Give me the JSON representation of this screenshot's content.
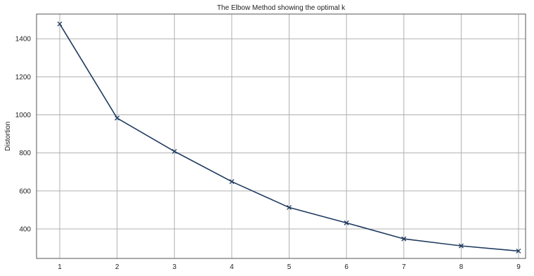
{
  "chart_data": {
    "type": "line",
    "title": "The Elbow Method showing the optimal k",
    "xlabel": "",
    "ylabel": "Distortion",
    "x": [
      1,
      2,
      3,
      4,
      5,
      6,
      7,
      8,
      9
    ],
    "series": [
      {
        "values": [
          1478,
          983,
          808,
          649,
          513,
          432,
          348,
          311,
          284
        ],
        "color": "#1f3a5f",
        "marker": "x"
      }
    ],
    "xticks": [
      "1",
      "2",
      "3",
      "4",
      "5",
      "6",
      "7",
      "8",
      "9"
    ],
    "yticks": [
      "400",
      "600",
      "800",
      "1000",
      "1200",
      "1400"
    ],
    "xlim": [
      1,
      9
    ],
    "ylim": [
      245,
      1530
    ],
    "grid": true,
    "legend": "none"
  },
  "colors": {
    "grid": "#b0b0b0",
    "frame": "#555555",
    "line": "#1f3a5f"
  }
}
